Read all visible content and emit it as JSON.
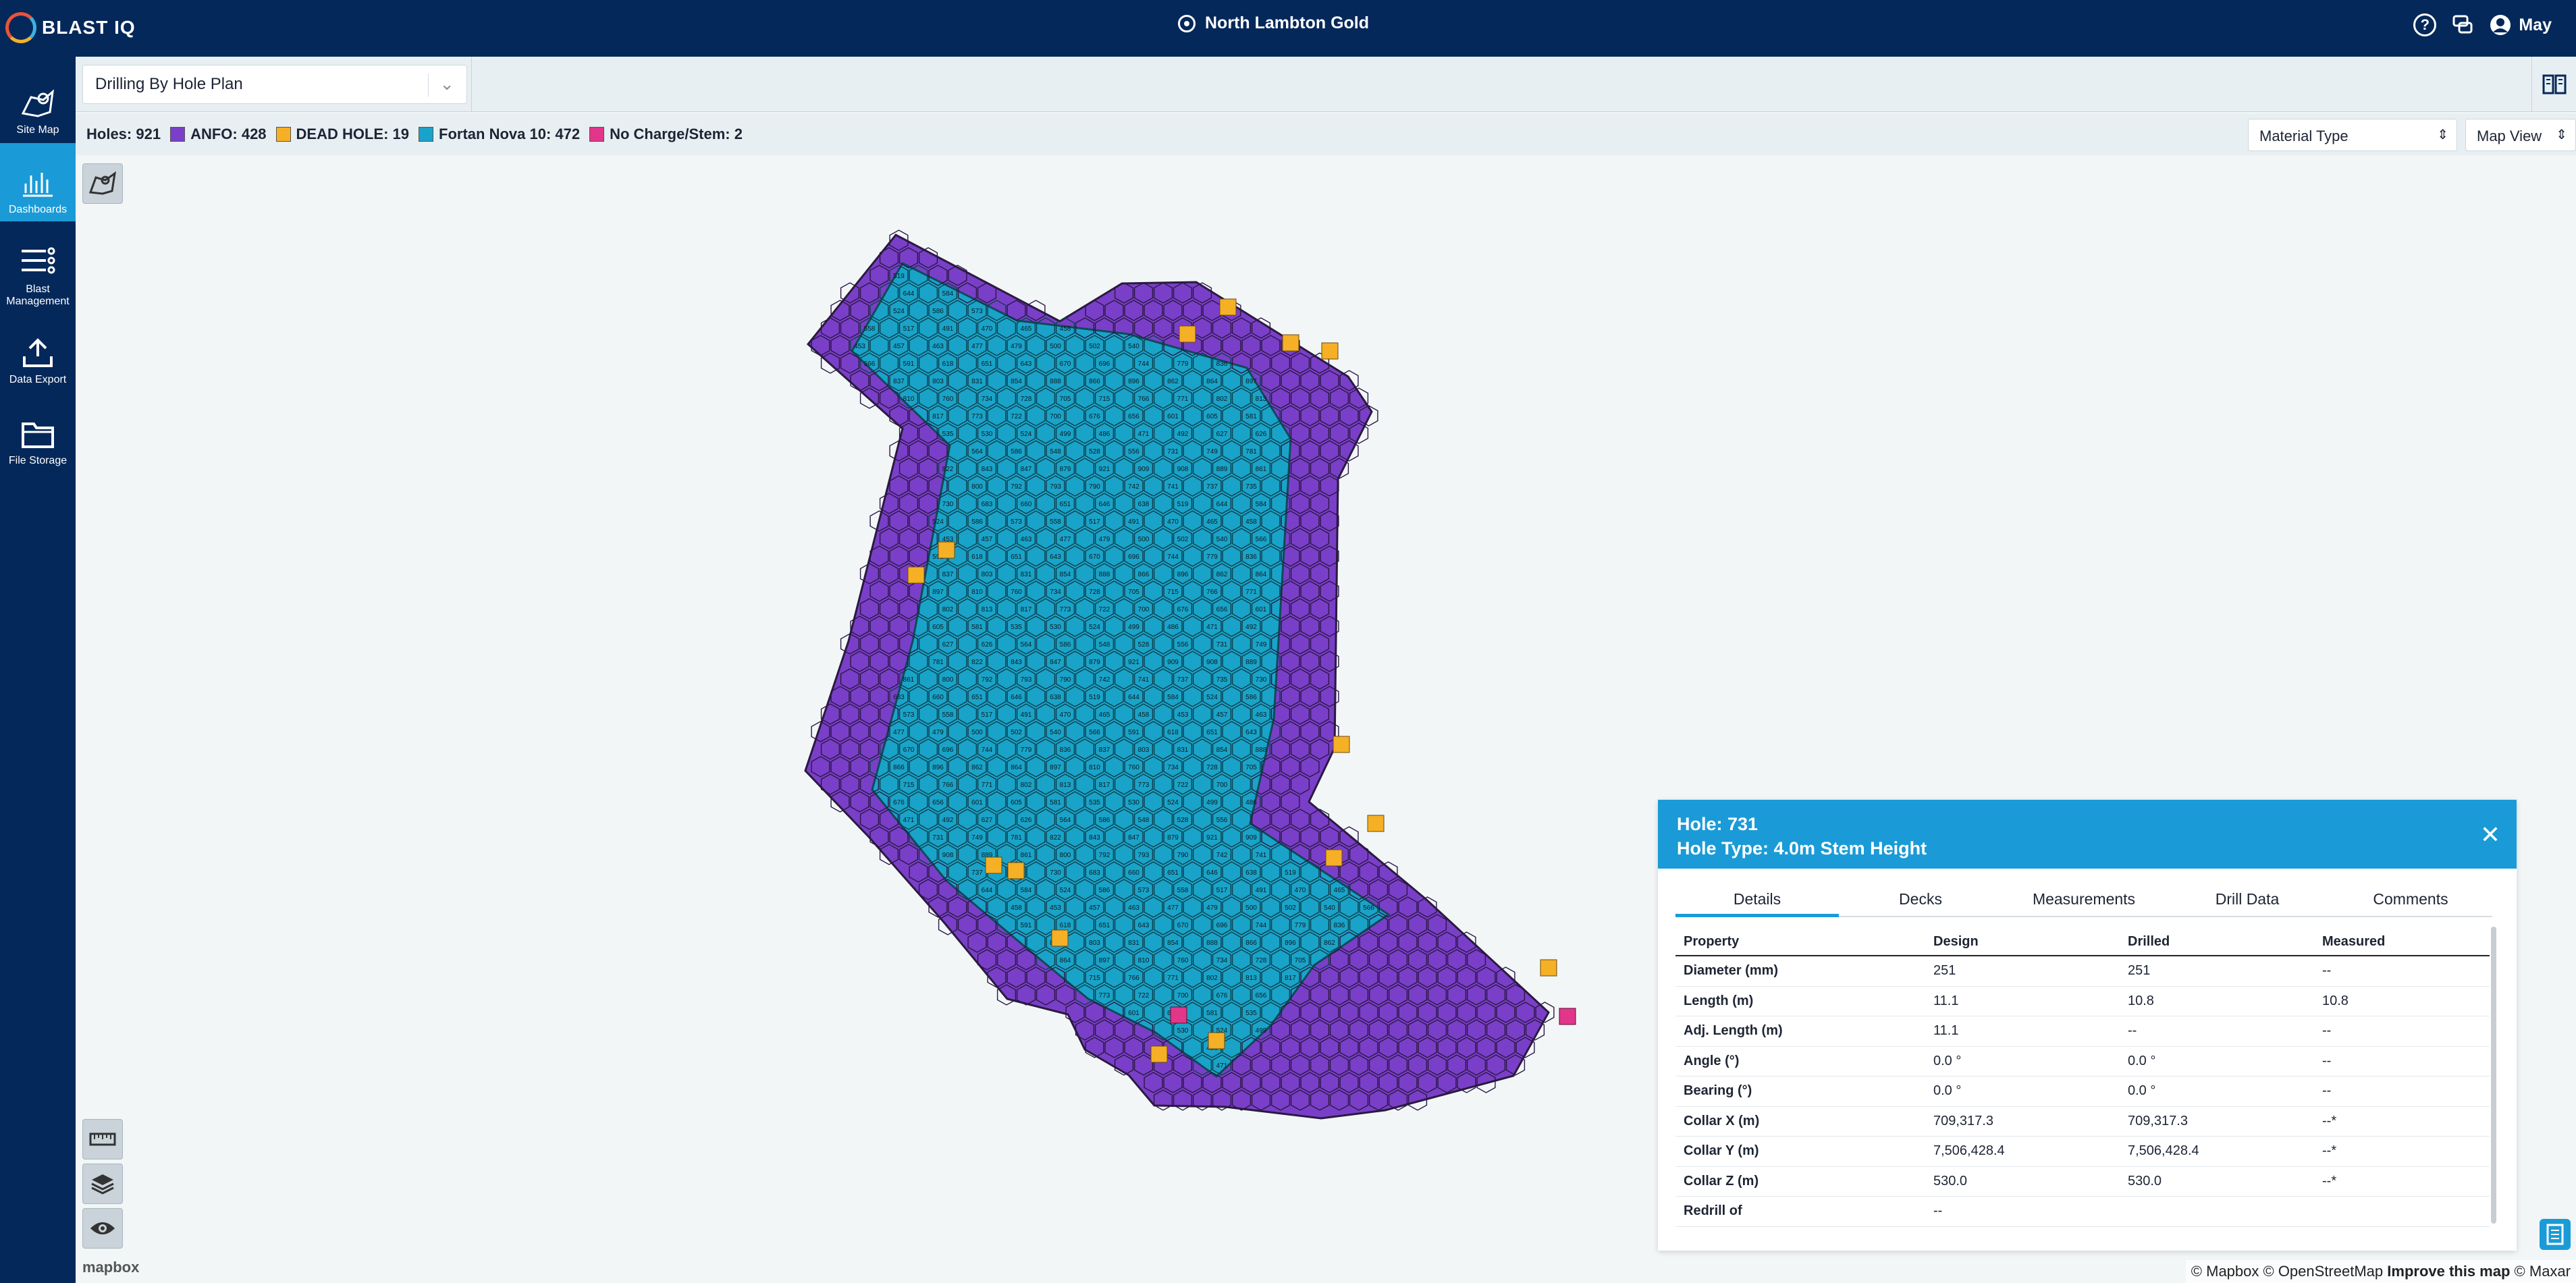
{
  "app": {
    "brand": "BLAST IQ",
    "site": "North Lambton Gold",
    "user": "May"
  },
  "sidebar": {
    "items": [
      {
        "label": "Site Map",
        "icon": "site-map-icon"
      },
      {
        "label": "Dashboards",
        "icon": "dashboard-icon",
        "active": true
      },
      {
        "label": "Blast Management",
        "icon": "blast-management-icon"
      },
      {
        "label": "Data Export",
        "icon": "upload-icon"
      },
      {
        "label": "File Storage",
        "icon": "folder-icon"
      }
    ]
  },
  "plan": {
    "selected": "Drilling By Hole Plan"
  },
  "legend": {
    "holes": "Holes: 921",
    "items": [
      {
        "label": "ANFO: 428",
        "color": "#7a3fc8"
      },
      {
        "label": "DEAD HOLE: 19",
        "color": "#f5b025"
      },
      {
        "label": "Fortan Nova 10: 472",
        "color": "#1aa3c8"
      },
      {
        "label": "No Charge/Stem: 2",
        "color": "#e2368a"
      }
    ],
    "material_select": "Material Type",
    "view_select": "Map View"
  },
  "map": {
    "mapbox": "mapbox",
    "attribution_a": "© Mapbox © OpenStreetMap",
    "attribution_b": "Improve this map",
    "attribution_c": "© Maxar",
    "visible_hole_labels": [
      "519",
      "644",
      "584",
      "524",
      "586",
      "573",
      "558",
      "517",
      "491",
      "470",
      "465",
      "458",
      "453",
      "457",
      "463",
      "477",
      "479",
      "500",
      "502",
      "540",
      "566",
      "591",
      "618",
      "651",
      "643",
      "670",
      "696",
      "744",
      "779",
      "836",
      "837",
      "803",
      "831",
      "854",
      "888",
      "866",
      "896",
      "862",
      "864",
      "897",
      "810",
      "760",
      "734",
      "728",
      "705",
      "715",
      "766",
      "771",
      "802",
      "813",
      "817",
      "773",
      "722",
      "700",
      "676",
      "656",
      "601",
      "605",
      "581",
      "535",
      "530",
      "524",
      "499",
      "486",
      "471",
      "492",
      "627",
      "626",
      "564",
      "586",
      "548",
      "528",
      "556",
      "731",
      "749",
      "781",
      "822",
      "843",
      "847",
      "879",
      "921",
      "909",
      "908",
      "889",
      "861",
      "800",
      "792",
      "793",
      "790",
      "742",
      "741",
      "737",
      "735",
      "730",
      "683",
      "660",
      "651",
      "646",
      "638"
    ]
  },
  "panel": {
    "hole": "Hole: 731",
    "hole_type": "Hole Type: 4.0m Stem Height",
    "tabs": [
      "Details",
      "Decks",
      "Measurements",
      "Drill Data",
      "Comments"
    ],
    "columns": [
      "Property",
      "Design",
      "Drilled",
      "Measured"
    ],
    "rows": [
      [
        "Diameter (mm)",
        "251",
        "251",
        "--"
      ],
      [
        "Length (m)",
        "11.1",
        "10.8",
        "10.8"
      ],
      [
        "Adj. Length (m)",
        "11.1",
        "--",
        "--"
      ],
      [
        "Angle (°)",
        "0.0 °",
        "0.0 °",
        "--"
      ],
      [
        "Bearing (°)",
        "0.0 °",
        "0.0 °",
        "--"
      ],
      [
        "Collar X (m)",
        "709,317.3",
        "709,317.3",
        "--*"
      ],
      [
        "Collar Y (m)",
        "7,506,428.4",
        "7,506,428.4",
        "--*"
      ],
      [
        "Collar Z (m)",
        "530.0",
        "530.0",
        "--*"
      ],
      [
        "Redrill of",
        "--",
        "",
        ""
      ]
    ]
  }
}
